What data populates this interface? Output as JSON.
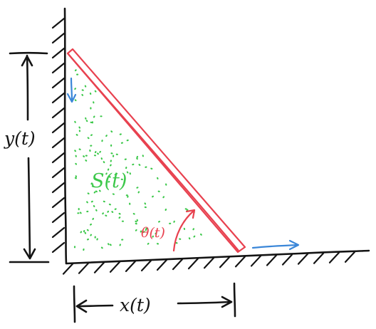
{
  "labels": {
    "y": "y(t)",
    "area": "S(t)",
    "angle": "θ(t)",
    "x": "x(t)"
  },
  "colors": {
    "ink": "#141414",
    "ladder": "#e8414f",
    "motion_arrows": "#3a86d8",
    "area_dots": "#3cc84a"
  },
  "icons": {
    "wall": "hatched-wall",
    "floor": "hatched-floor",
    "ladder_down": "arrow-down-icon",
    "ladder_right": "arrow-right-icon"
  }
}
